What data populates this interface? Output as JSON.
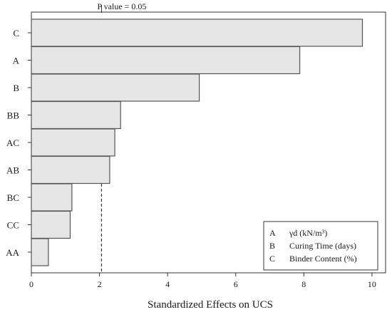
{
  "chart_data": {
    "type": "bar",
    "orientation": "horizontal",
    "categories": [
      "C",
      "A",
      "B",
      "BB",
      "AC",
      "AB",
      "BC",
      "CC",
      "AA"
    ],
    "values": [
      9.72,
      7.88,
      4.93,
      2.62,
      2.45,
      2.3,
      1.19,
      1.14,
      0.5
    ],
    "xlabel": "Standardized Effects on UCS",
    "ylabel": "",
    "xlim": [
      0,
      10.4
    ],
    "xticks": [
      0,
      2,
      4,
      6,
      8,
      10
    ],
    "reference_line": {
      "value": 2.06,
      "label": "P value = 0.05"
    },
    "legend": {
      "position": "bottom-right",
      "entries": [
        {
          "key": "A",
          "text": "γd (kN/m³)"
        },
        {
          "key": "B",
          "text": "Curing Time (days)"
        },
        {
          "key": "C",
          "text": "Binder Content (%)"
        }
      ]
    },
    "colors": {
      "bar_fill": "#e6e6e6",
      "bar_stroke": "#555555",
      "axis": "#333333"
    }
  }
}
